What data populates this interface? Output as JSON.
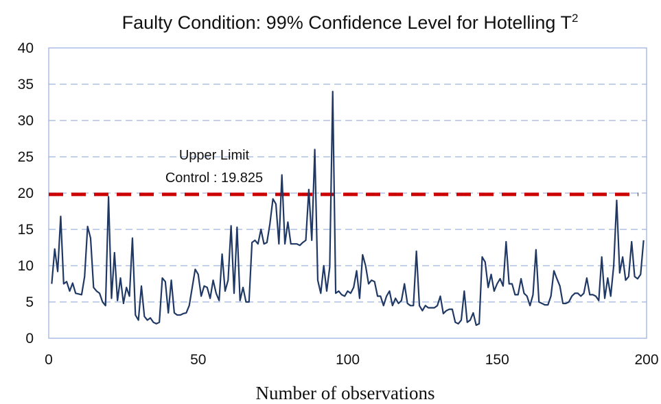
{
  "chart_data": {
    "type": "line",
    "title": "Faulty Condition: 99% Confidence Level for Hotelling T",
    "title_superscript": "2",
    "xlabel": "Number of observations",
    "ylabel": "",
    "xlim": [
      0,
      200
    ],
    "ylim": [
      0,
      40
    ],
    "x_ticks": [
      "0",
      "50",
      "100",
      "150",
      "200"
    ],
    "y_ticks": [
      "0",
      "5",
      "10",
      "15",
      "20",
      "25",
      "30",
      "35",
      "40"
    ],
    "grid": true,
    "legend": "none",
    "line_color": "#1f3864",
    "limit_color": "#cc0000",
    "grid_color": "#9db4e0",
    "control_limit": {
      "value": 19.825,
      "label_line1": "Upper Limit",
      "label_line2": "Control : 19.825"
    },
    "series": [
      {
        "values": [
          7.5,
          12.3,
          9.2,
          16.8,
          7.5,
          7.8,
          6.5,
          7.6,
          6.2,
          6.1,
          6.0,
          8.5,
          15.4,
          13.8,
          7.0,
          6.5,
          6.2,
          5.0,
          4.5,
          19.5,
          5.5,
          11.8,
          5.2,
          8.3,
          4.8,
          7.0,
          5.8,
          13.8,
          3.2,
          2.5,
          7.2,
          3.0,
          2.5,
          2.8,
          2.2,
          2.0,
          2.2,
          8.3,
          7.8,
          3.5,
          8.0,
          3.5,
          3.2,
          3.2,
          3.4,
          3.5,
          4.5,
          7.0,
          9.5,
          8.8,
          5.8,
          7.2,
          7.0,
          5.5,
          8.0,
          6.2,
          5.2,
          11.6,
          6.5,
          8.0,
          15.5,
          6.2,
          15.3,
          5.2,
          7.0,
          5.0,
          5.0,
          13.2,
          13.5,
          13.0,
          15.0,
          13.0,
          13.2,
          15.8,
          19.2,
          18.5,
          13.0,
          22.5,
          13.0,
          16.0,
          13.0,
          13.0,
          13.0,
          12.8,
          13.2,
          13.5,
          20.5,
          13.5,
          26.0,
          8.0,
          6.2,
          10.0,
          6.5,
          9.8,
          34.0,
          6.2,
          6.5,
          6.0,
          5.8,
          6.5,
          6.2,
          7.0,
          9.3,
          5.5,
          11.5,
          10.0,
          7.5,
          8.0,
          7.8,
          5.8,
          5.8,
          4.5,
          5.8,
          6.5,
          4.5,
          5.5,
          4.8,
          5.2,
          7.5,
          4.8,
          4.5,
          4.5,
          12.0,
          4.5,
          3.8,
          4.5,
          4.2,
          4.2,
          4.2,
          4.5,
          5.8,
          3.4,
          3.8,
          4.0,
          4.0,
          2.2,
          2.0,
          2.5,
          6.5,
          2.2,
          2.5,
          3.5,
          1.8,
          2.0,
          11.2,
          10.5,
          7.0,
          8.8,
          6.5,
          7.5,
          8.2,
          7.2,
          13.3,
          7.5,
          7.5,
          6.0,
          6.0,
          8.2,
          6.2,
          5.8,
          4.5,
          6.0,
          12.2,
          5.0,
          4.8,
          4.6,
          4.6,
          5.8,
          9.3,
          8.2,
          7.2,
          4.8,
          4.8,
          5.0,
          5.8,
          6.2,
          6.2,
          5.8,
          6.2,
          8.3,
          6.0,
          6.0,
          5.8,
          5.2,
          11.2,
          5.5,
          8.3,
          5.8,
          10.0,
          19.0,
          9.0,
          11.2,
          8.0,
          8.5,
          13.3,
          8.5,
          8.2,
          8.8,
          13.5
        ]
      }
    ]
  }
}
